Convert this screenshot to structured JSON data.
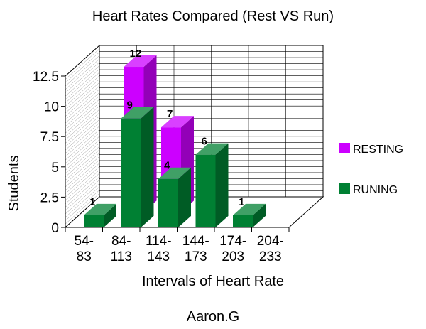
{
  "chart_data": {
    "type": "bar",
    "title": "Heart Rates Compared (Rest VS Run)",
    "xlabel": "Intervals of Heart Rate",
    "ylabel": "Students",
    "footer": "Aaron.G",
    "categories": [
      [
        "54-",
        "83"
      ],
      [
        "84-",
        "113"
      ],
      [
        "114-",
        "143"
      ],
      [
        "144-",
        "173"
      ],
      [
        "174-",
        "203"
      ],
      [
        "204-",
        "233"
      ]
    ],
    "ylim": [
      0,
      12.5
    ],
    "yticks": [
      "0",
      "2.5",
      "5",
      "7.5",
      "10",
      "12.5"
    ],
    "grid": true,
    "legend_position": "right",
    "series": [
      {
        "name": "RESTING",
        "color": "#cc00ff",
        "values": [
          0,
          12,
          7,
          0,
          0,
          0
        ],
        "labels": [
          "",
          "12",
          "7",
          "",
          "",
          ""
        ]
      },
      {
        "name": "RUNING",
        "color": "#008033",
        "values": [
          1,
          9,
          4,
          6,
          1,
          0
        ],
        "labels": [
          "1",
          "9",
          "4",
          "6",
          "1",
          ""
        ]
      }
    ]
  }
}
